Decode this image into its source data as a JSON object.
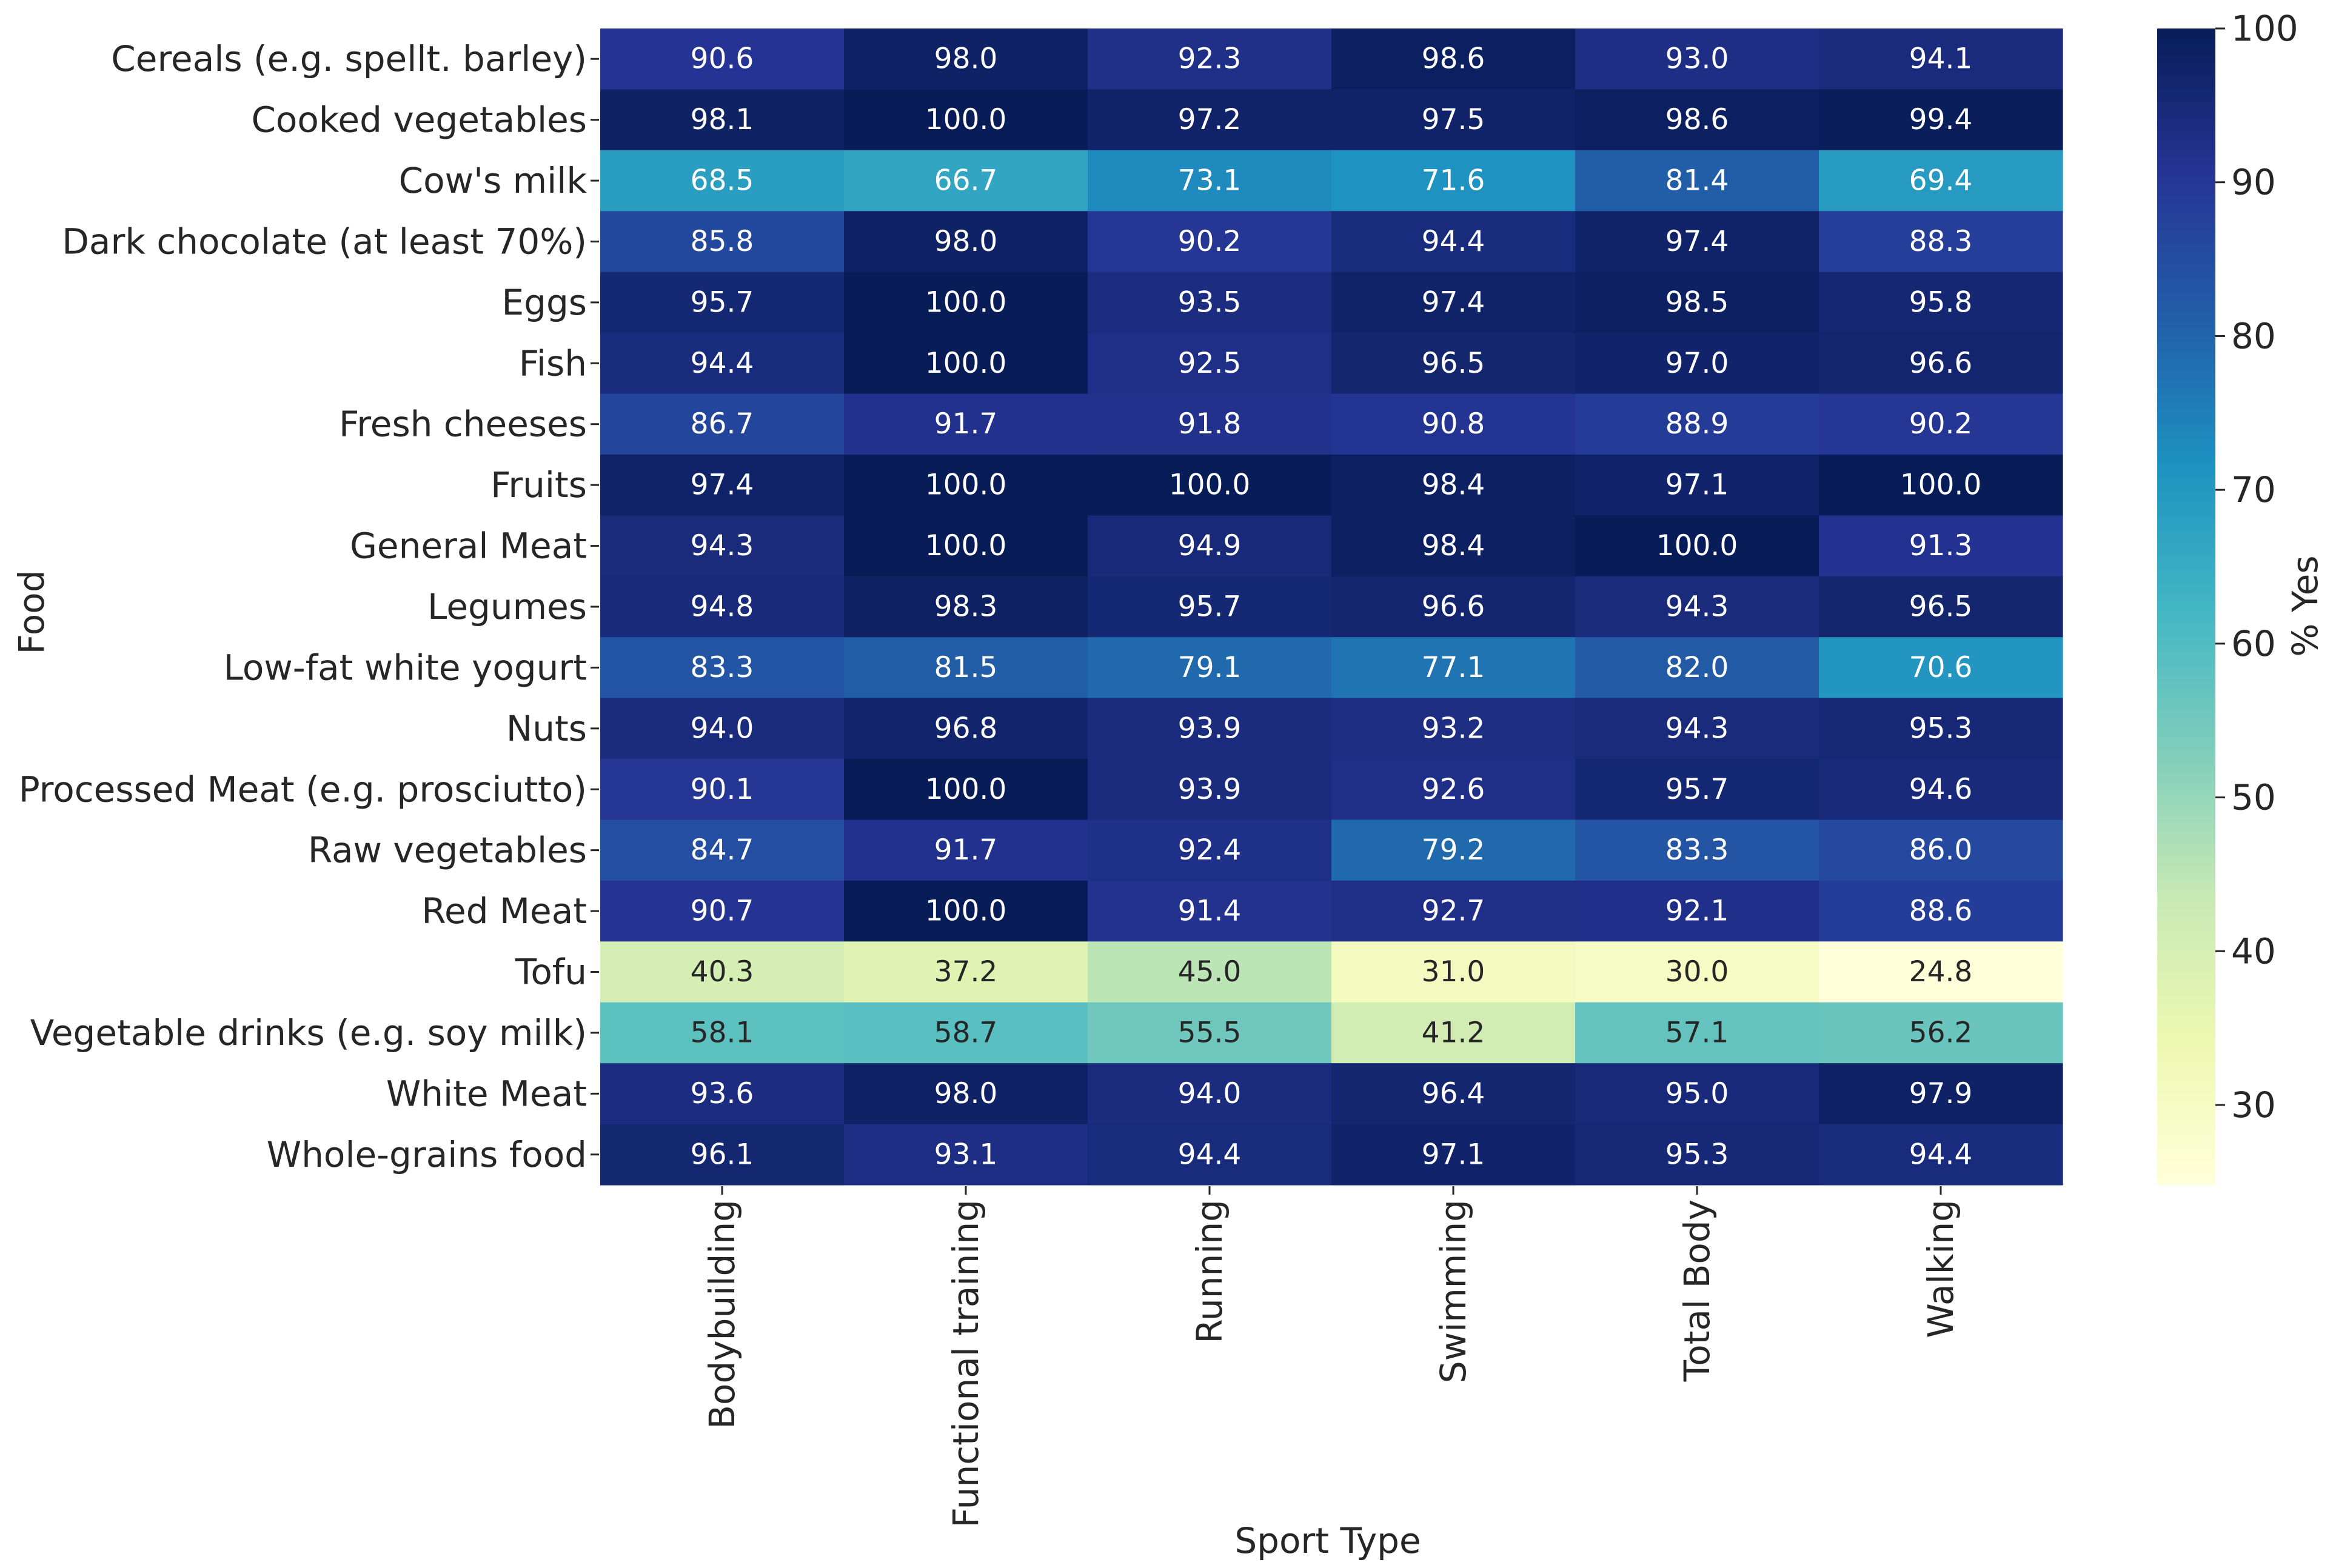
{
  "chart_data": {
    "type": "heatmap",
    "title": "",
    "xlabel": "Sport Type",
    "ylabel": "Food",
    "colormap": "YlGnBu",
    "x_categories": [
      "Bodybuilding",
      "Functional training",
      "Running",
      "Swimming",
      "Total Body",
      "Walking"
    ],
    "y_categories": [
      "Cereals (e.g. spellt. barley)",
      "Cooked vegetables",
      "Cow's milk",
      "Dark chocolate (at least 70%)",
      "Eggs",
      "Fish",
      "Fresh cheeses",
      "Fruits",
      "General Meat",
      "Legumes",
      "Low-fat white yogurt",
      "Nuts",
      "Processed Meat (e.g. prosciutto)",
      "Raw vegetables",
      "Red Meat",
      "Tofu",
      "Vegetable drinks (e.g. soy milk)",
      "White Meat",
      "Whole-grains food"
    ],
    "values": [
      [
        90.6,
        98.0,
        92.3,
        98.6,
        93.0,
        94.1
      ],
      [
        98.1,
        100.0,
        97.2,
        97.5,
        98.6,
        99.4
      ],
      [
        68.5,
        66.7,
        73.1,
        71.6,
        81.4,
        69.4
      ],
      [
        85.8,
        98.0,
        90.2,
        94.4,
        97.4,
        88.3
      ],
      [
        95.7,
        100.0,
        93.5,
        97.4,
        98.5,
        95.8
      ],
      [
        94.4,
        100.0,
        92.5,
        96.5,
        97.0,
        96.6
      ],
      [
        86.7,
        91.7,
        91.8,
        90.8,
        88.9,
        90.2
      ],
      [
        97.4,
        100.0,
        100.0,
        98.4,
        97.1,
        100.0
      ],
      [
        94.3,
        100.0,
        94.9,
        98.4,
        100.0,
        91.3
      ],
      [
        94.8,
        98.3,
        95.7,
        96.6,
        94.3,
        96.5
      ],
      [
        83.3,
        81.5,
        79.1,
        77.1,
        82.0,
        70.6
      ],
      [
        94.0,
        96.8,
        93.9,
        93.2,
        94.3,
        95.3
      ],
      [
        90.1,
        100.0,
        93.9,
        92.6,
        95.7,
        94.6
      ],
      [
        84.7,
        91.7,
        92.4,
        79.2,
        83.3,
        86.0
      ],
      [
        90.7,
        100.0,
        91.4,
        92.7,
        92.1,
        88.6
      ],
      [
        40.3,
        37.2,
        45.0,
        31.0,
        30.0,
        24.8
      ],
      [
        58.1,
        58.7,
        55.5,
        41.2,
        57.1,
        56.2
      ],
      [
        93.6,
        98.0,
        94.0,
        96.4,
        95.0,
        97.9
      ],
      [
        96.1,
        93.1,
        94.4,
        97.1,
        95.3,
        94.4
      ]
    ],
    "colorbar": {
      "label": "% Yes",
      "range": [
        24.8,
        100
      ],
      "ticks": [
        30,
        40,
        50,
        60,
        70,
        80,
        90,
        100
      ]
    },
    "value_format": "0.0"
  }
}
